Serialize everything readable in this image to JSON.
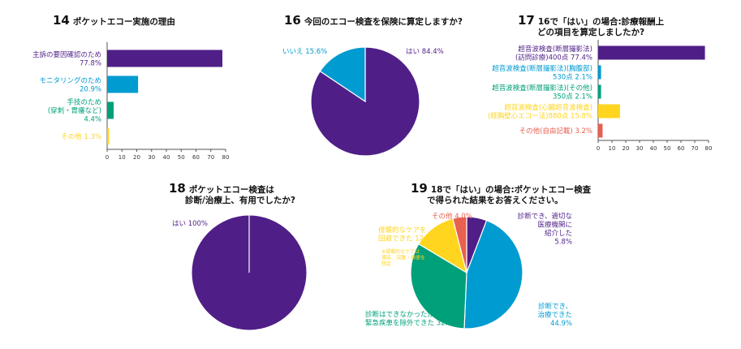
{
  "colors": {
    "purple": "#4f1f87",
    "blue": "#009bd0",
    "green": "#00a07a",
    "yellow": "#ffd51f",
    "salmon": "#e8604f",
    "axis": "#555555"
  },
  "q14": {
    "number": "14",
    "title": "ポケットエコー実施の理由"
  },
  "q16": {
    "number": "16",
    "title": "今回のエコー検査を保険に算定しますか?"
  },
  "q17": {
    "number": "17",
    "title_line1": "16で「はい」の場合:診療報酬上",
    "title_line2": "どの項目を算定しましたか?"
  },
  "q18": {
    "number": "18",
    "title_line1": "ポケットエコー検査は",
    "title_line2": "診断/治療上、有用でしたか?"
  },
  "q19": {
    "number": "19",
    "title_line1": "18で「はい」の場合:ポケットエコー検査",
    "title_line2": "で得られた結果をお答えください。"
  },
  "chart_data": [
    {
      "id": "q14",
      "type": "bar",
      "orientation": "horizontal",
      "title": "ポケットエコー実施の理由",
      "xlim": [
        0,
        80
      ],
      "ticks": [
        "0",
        "10",
        "20",
        "30",
        "40",
        "50",
        "60",
        "70",
        "80"
      ],
      "categories": [
        {
          "lines": [
            "主訴の要因確認のため",
            "77.8%"
          ],
          "value": 77.8,
          "color": "#4f1f87"
        },
        {
          "lines": [
            "モニタリングのため",
            "20.9%"
          ],
          "value": 20.9,
          "color": "#009bd0"
        },
        {
          "lines": [
            "手技のため",
            "(穿刺・胃瘻など)",
            "4.4%"
          ],
          "value": 4.4,
          "color": "#00a07a"
        },
        {
          "lines": [
            "その他 1.3%"
          ],
          "value": 1.3,
          "color": "#ffd51f"
        }
      ]
    },
    {
      "id": "q16",
      "type": "pie",
      "title": "今回のエコー検査を保険に算定しますか?",
      "slices": [
        {
          "label": "はい 84.4%",
          "value": 84.4,
          "color": "#4f1f87"
        },
        {
          "label": "いいえ 15.6%",
          "value": 15.6,
          "color": "#009bd0"
        }
      ]
    },
    {
      "id": "q17",
      "type": "bar",
      "orientation": "horizontal",
      "title": "16で「はい」の場合:診療報酬上どの項目を算定しましたか?",
      "xlim": [
        0,
        80
      ],
      "ticks": [
        "0",
        "10",
        "20",
        "30",
        "40",
        "50",
        "60",
        "70",
        "80"
      ],
      "categories": [
        {
          "lines": [
            "超音波検査(断層撮影法)",
            "(訪問診療)400点  77.4%"
          ],
          "value": 77.4,
          "color": "#4f1f87"
        },
        {
          "lines": [
            "超音波検査(断層撮影法)(胸腹部)",
            "530点  2.1%"
          ],
          "value": 2.1,
          "color": "#009bd0"
        },
        {
          "lines": [
            "超音波検査(断層撮影法)(その他)",
            "350点  2.1%"
          ],
          "value": 2.1,
          "color": "#00a07a"
        },
        {
          "lines": [
            "超音波検査(心臓超音波検査)",
            "(経胸壁心エコー法)880点  15.8%"
          ],
          "value": 15.8,
          "color": "#ffd51f"
        },
        {
          "lines": [
            "その他(自由記載) 3.2%"
          ],
          "value": 3.2,
          "color": "#e8604f"
        }
      ]
    },
    {
      "id": "q18",
      "type": "pie",
      "title": "ポケットエコー検査は診断/治療上、有用でしたか?",
      "slices": [
        {
          "label": "はい 100%",
          "value": 100,
          "color": "#4f1f87"
        }
      ]
    },
    {
      "id": "q19",
      "type": "pie",
      "title": "18で「はい」の場合:ポケットエコー検査で得られた結果をお答えください。",
      "slices": [
        {
          "lines": [
            "診断でき、適切な",
            "医療機関に",
            "紹介した",
            "5.8%"
          ],
          "value": 5.8,
          "color": "#4f1f87"
        },
        {
          "lines": [
            "診断でき、",
            "治療できた",
            "44.9%"
          ],
          "value": 44.9,
          "color": "#009bd0"
        },
        {
          "lines": [
            "診断はできなかったが",
            "緊急疾患を除外できた 32.9%"
          ],
          "value": 32.9,
          "color": "#00a07a"
        },
        {
          "lines": [
            "侵襲的なケアを",
            "回避できた 12.4%"
          ],
          "value": 12.4,
          "color": "#ffd51f"
        },
        {
          "lines": [
            "その他 4.0%"
          ],
          "value": 4.0,
          "color": "#e8604f"
        }
      ],
      "footnote": [
        "※侵襲的なケアは",
        "導尿、浣腸・摘便を",
        "想定"
      ]
    }
  ]
}
